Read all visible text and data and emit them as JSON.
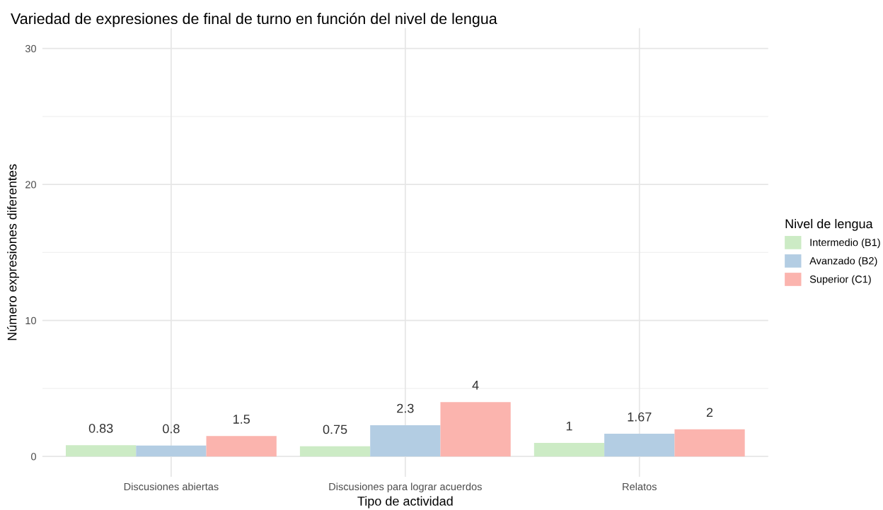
{
  "chart_data": {
    "type": "bar",
    "title": "Variedad de expresiones de final de turno en función del nivel de lengua",
    "xlabel": "Tipo de actividad",
    "ylabel": "Número expresiones diferentes",
    "legend_title": "Nivel de lengua",
    "categories": [
      "Discusiones abiertas",
      "Discusiones para lograr acuerdos",
      "Relatos"
    ],
    "series": [
      {
        "name": "Intermedio (B1)",
        "color": "#ccebc5",
        "values": [
          0.83,
          0.75,
          1
        ]
      },
      {
        "name": "Avanzado (B2)",
        "color": "#b3cde3",
        "values": [
          0.8,
          2.3,
          1.67
        ]
      },
      {
        "name": "Superior (C1)",
        "color": "#fbb4ae",
        "values": [
          1.5,
          4,
          2
        ]
      }
    ],
    "ylim": [
      -1.5,
      31.5
    ],
    "yticks": [
      0,
      10,
      20,
      30
    ],
    "grid": true,
    "legend": "right",
    "data_labels": true
  }
}
